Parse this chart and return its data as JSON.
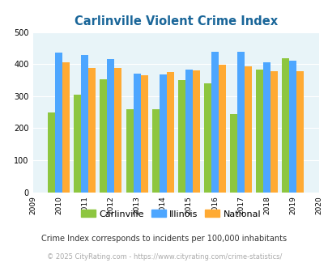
{
  "title": "Carlinville Violent Crime Index",
  "years": [
    2010,
    2011,
    2012,
    2013,
    2014,
    2015,
    2016,
    2017,
    2018,
    2019
  ],
  "carlinville": [
    248,
    305,
    352,
    260,
    260,
    350,
    340,
    243,
    383,
    418
  ],
  "illinois": [
    435,
    428,
    416,
    370,
    367,
    383,
    438,
    438,
    405,
    410
  ],
  "national": [
    406,
    387,
    387,
    365,
    375,
    381,
    397,
    394,
    379,
    379
  ],
  "carlinville_color": "#8dc63f",
  "illinois_color": "#4da6ff",
  "national_color": "#ffaa33",
  "bg_color": "#e8f4f8",
  "title_color": "#1a6699",
  "xlim": [
    2009,
    2020
  ],
  "ylim": [
    0,
    500
  ],
  "yticks": [
    0,
    100,
    200,
    300,
    400,
    500
  ],
  "xticks": [
    2009,
    2010,
    2011,
    2012,
    2013,
    2014,
    2015,
    2016,
    2017,
    2018,
    2019,
    2020
  ],
  "footnote1": "Crime Index corresponds to incidents per 100,000 inhabitants",
  "footnote2": "© 2025 CityRating.com - https://www.cityrating.com/crime-statistics/",
  "legend_labels": [
    "Carlinville",
    "Illinois",
    "National"
  ],
  "bar_width": 0.28
}
